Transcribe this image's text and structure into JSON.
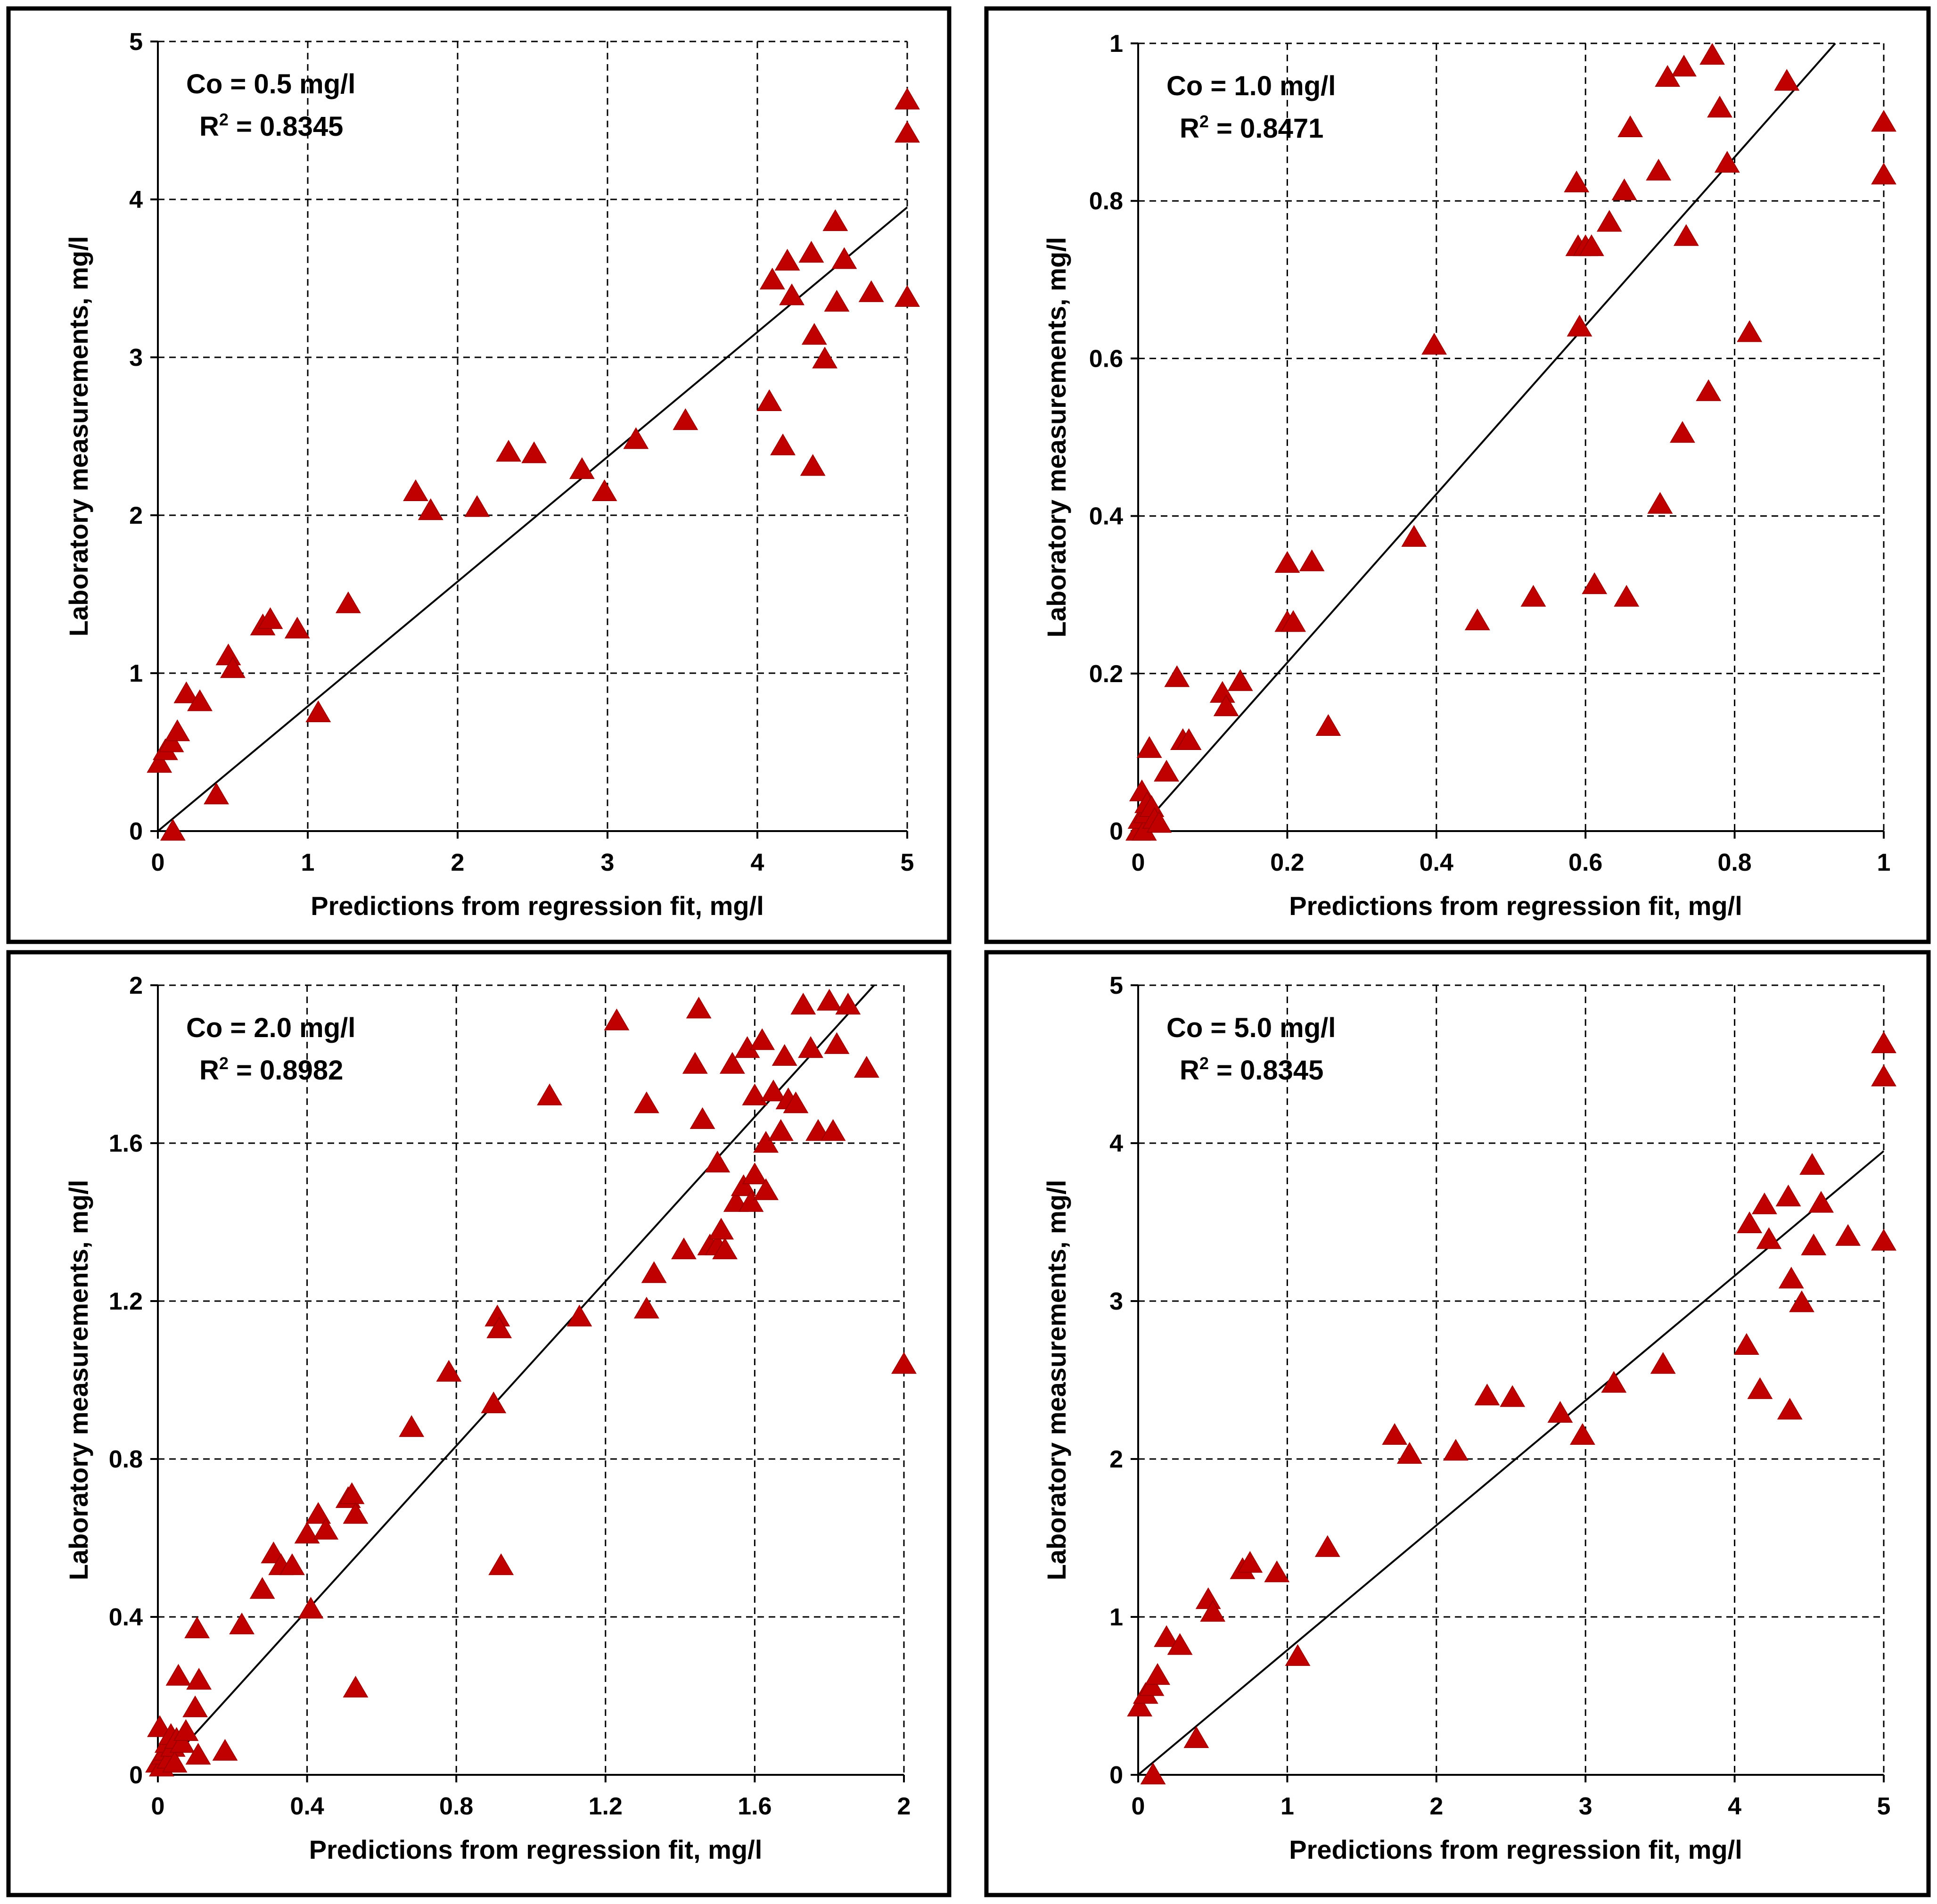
{
  "colors": {
    "marker": "#C00000",
    "marker_stroke": "#A00000",
    "line": "#000000",
    "grid": "#000000",
    "panel_border": "#000000",
    "background": "#ffffff"
  },
  "chart_data": [
    {
      "type": "scatter",
      "panel": "top-left",
      "xlabel": "Predictions from regression fit, mg/l",
      "ylabel": "Laboratory measurements, mg/l",
      "xlim": [
        0,
        5
      ],
      "ylim": [
        0,
        5
      ],
      "xticks": [
        0,
        1,
        2,
        3,
        4,
        5
      ],
      "yticks": [
        0,
        1,
        2,
        3,
        4,
        5
      ],
      "xtick_labels": [
        "0",
        "1",
        "2",
        "3",
        "4",
        "5"
      ],
      "ytick_labels": [
        "0",
        "1",
        "2",
        "3",
        "4",
        "5"
      ],
      "grid": true,
      "annotation": {
        "co_text": "Co = 0.5 mg/l",
        "r2_prefix": "R",
        "r2_sup": "2",
        "r2_suffix": " = 0.8345"
      },
      "fit_line": {
        "x": [
          0,
          5
        ],
        "y": [
          0,
          3.95
        ]
      },
      "points": {
        "x": [
          0.01,
          0.05,
          0.09,
          0.13,
          0.19,
          0.28,
          0.1,
          0.39,
          0.47,
          0.5,
          0.7,
          0.75,
          0.93,
          1.07,
          1.27,
          1.72,
          1.82,
          2.13,
          2.34,
          2.51,
          2.83,
          2.98,
          3.19,
          3.52,
          4.08,
          4.1,
          4.17,
          4.2,
          4.23,
          4.36,
          4.37,
          4.38,
          4.45,
          4.52,
          4.53,
          4.58,
          4.76,
          5.0,
          5.0,
          5.0
        ],
        "y": [
          0.43,
          0.51,
          0.56,
          0.63,
          0.87,
          0.82,
          0.0,
          0.23,
          1.11,
          1.03,
          1.3,
          1.34,
          1.28,
          0.75,
          1.44,
          2.15,
          2.03,
          2.05,
          2.4,
          2.39,
          2.29,
          2.15,
          2.48,
          2.6,
          2.72,
          3.49,
          2.44,
          3.61,
          3.39,
          3.66,
          2.31,
          3.14,
          2.99,
          3.86,
          3.35,
          3.62,
          3.41,
          4.63,
          4.42,
          3.38
        ]
      }
    },
    {
      "type": "scatter",
      "panel": "top-right",
      "xlabel": "Predictions from regression fit, mg/l",
      "ylabel": "Laboratory measurements, mg/l",
      "xlim": [
        0,
        1
      ],
      "ylim": [
        0,
        1
      ],
      "xticks": [
        0,
        0.2,
        0.4,
        0.6,
        0.8,
        1.0
      ],
      "yticks": [
        0,
        0.2,
        0.4,
        0.6,
        0.8,
        1.0
      ],
      "xtick_labels": [
        "0",
        "0.2",
        "0.4",
        "0.6",
        "0.8",
        "1"
      ],
      "ytick_labels": [
        "0",
        "0.2",
        "0.4",
        "0.6",
        "0.8",
        "1"
      ],
      "grid": true,
      "annotation": {
        "co_text": "Co = 1.0 mg/l",
        "r2_prefix": "R",
        "r2_sup": "2",
        "r2_suffix": " = 0.8471"
      },
      "fit_line": {
        "x": [
          0,
          0.935
        ],
        "y": [
          0,
          1.0
        ]
      },
      "points": {
        "x": [
          0.0,
          0.003,
          0.005,
          0.008,
          0.01,
          0.012,
          0.015,
          0.018,
          0.022,
          0.028,
          0.038,
          0.052,
          0.06,
          0.068,
          0.113,
          0.118,
          0.137,
          0.2,
          0.2,
          0.208,
          0.233,
          0.255,
          0.37,
          0.397,
          0.455,
          0.53,
          0.588,
          0.59,
          0.592,
          0.6,
          0.608,
          0.612,
          0.632,
          0.652,
          0.655,
          0.66,
          0.698,
          0.7,
          0.71,
          0.73,
          0.732,
          0.735,
          0.765,
          0.77,
          0.78,
          0.79,
          0.82,
          0.87,
          1.0,
          1.0
        ],
        "y": [
          0.0,
          0.015,
          0.05,
          0.0,
          0.022,
          0.035,
          0.105,
          0.03,
          0.015,
          0.01,
          0.075,
          0.195,
          0.115,
          0.115,
          0.175,
          0.158,
          0.19,
          0.34,
          0.265,
          0.265,
          0.342,
          0.133,
          0.373,
          0.617,
          0.267,
          0.297,
          0.823,
          0.742,
          0.64,
          0.742,
          0.742,
          0.313,
          0.773,
          0.813,
          0.297,
          0.893,
          0.838,
          0.415,
          0.957,
          0.505,
          0.97,
          0.755,
          0.558,
          0.985,
          0.918,
          0.848,
          0.633,
          0.952,
          0.9,
          0.833
        ]
      }
    },
    {
      "type": "scatter",
      "panel": "bottom-left",
      "xlabel": "Predictions from regression fit, mg/l",
      "ylabel": "Laboratory measurements, mg/l",
      "xlim": [
        0,
        2
      ],
      "ylim": [
        0,
        2
      ],
      "xticks": [
        0,
        0.4,
        0.8,
        1.2,
        1.6,
        2.0
      ],
      "yticks": [
        0,
        0.4,
        0.8,
        1.2,
        1.6,
        2.0
      ],
      "xtick_labels": [
        "0",
        "0.4",
        "0.8",
        "1.2",
        "1.6",
        "2"
      ],
      "ytick_labels": [
        "0",
        "0.4",
        "0.8",
        "1.2",
        "1.6",
        "2"
      ],
      "grid": true,
      "annotation": {
        "co_text": "Co = 2.0 mg/l",
        "r2_prefix": "R",
        "r2_sup": "2",
        "r2_suffix": " = 0.8982"
      },
      "fit_line": {
        "x": [
          0,
          1.92
        ],
        "y": [
          0,
          2.0
        ]
      },
      "points": {
        "x": [
          0.0,
          0.005,
          0.01,
          0.015,
          0.02,
          0.025,
          0.03,
          0.035,
          0.04,
          0.045,
          0.05,
          0.055,
          0.065,
          0.075,
          0.1,
          0.105,
          0.108,
          0.11,
          0.18,
          0.225,
          0.28,
          0.31,
          0.33,
          0.36,
          0.4,
          0.41,
          0.43,
          0.45,
          0.51,
          0.52,
          0.53,
          0.53,
          0.68,
          0.78,
          0.9,
          0.91,
          0.915,
          0.92,
          1.05,
          1.13,
          1.23,
          1.31,
          1.31,
          1.33,
          1.41,
          1.44,
          1.45,
          1.46,
          1.48,
          1.5,
          1.5,
          1.51,
          1.52,
          1.54,
          1.55,
          1.57,
          1.58,
          1.59,
          1.6,
          1.6,
          1.62,
          1.63,
          1.63,
          1.65,
          1.67,
          1.68,
          1.69,
          1.71,
          1.73,
          1.75,
          1.77,
          1.8,
          1.81,
          1.82,
          1.85,
          1.9,
          2.0
        ],
        "y": [
          0.03,
          0.12,
          0.02,
          0.05,
          0.06,
          0.08,
          0.04,
          0.1,
          0.07,
          0.03,
          0.09,
          0.25,
          0.08,
          0.11,
          0.17,
          0.37,
          0.05,
          0.24,
          0.06,
          0.38,
          0.47,
          0.56,
          0.53,
          0.53,
          0.61,
          0.42,
          0.66,
          0.62,
          0.7,
          0.71,
          0.22,
          0.66,
          0.88,
          1.02,
          0.94,
          1.16,
          1.13,
          0.53,
          1.72,
          1.16,
          1.91,
          1.18,
          1.7,
          1.27,
          1.33,
          1.8,
          1.94,
          1.66,
          1.34,
          1.34,
          1.55,
          1.38,
          1.33,
          1.8,
          1.45,
          1.49,
          1.84,
          1.45,
          1.72,
          1.52,
          1.86,
          1.6,
          1.48,
          1.73,
          1.63,
          1.82,
          1.71,
          1.7,
          1.95,
          1.84,
          1.63,
          1.96,
          1.63,
          1.85,
          1.95,
          1.79,
          1.04
        ]
      }
    },
    {
      "type": "scatter",
      "panel": "bottom-right",
      "xlabel": "Predictions from regression fit, mg/l",
      "ylabel": "Laboratory measurements, mg/l",
      "xlim": [
        0,
        5
      ],
      "ylim": [
        0,
        5
      ],
      "xticks": [
        0,
        1,
        2,
        3,
        4,
        5
      ],
      "yticks": [
        0,
        1,
        2,
        3,
        4,
        5
      ],
      "xtick_labels": [
        "0",
        "1",
        "2",
        "3",
        "4",
        "5"
      ],
      "ytick_labels": [
        "0",
        "1",
        "2",
        "3",
        "4",
        "5"
      ],
      "grid": true,
      "annotation": {
        "co_text": "Co = 5.0 mg/l",
        "r2_prefix": "R",
        "r2_sup": "2",
        "r2_suffix": " = 0.8345"
      },
      "fit_line": {
        "x": [
          0,
          5
        ],
        "y": [
          0,
          3.95
        ]
      },
      "points": {
        "x": [
          0.01,
          0.05,
          0.09,
          0.13,
          0.19,
          0.28,
          0.1,
          0.39,
          0.47,
          0.5,
          0.7,
          0.75,
          0.93,
          1.07,
          1.27,
          1.72,
          1.82,
          2.13,
          2.34,
          2.51,
          2.83,
          2.98,
          3.19,
          3.52,
          4.08,
          4.1,
          4.17,
          4.2,
          4.23,
          4.36,
          4.37,
          4.38,
          4.45,
          4.52,
          4.53,
          4.58,
          4.76,
          5.0,
          5.0,
          5.0
        ],
        "y": [
          0.43,
          0.51,
          0.56,
          0.63,
          0.87,
          0.82,
          0.0,
          0.23,
          1.11,
          1.03,
          1.3,
          1.34,
          1.28,
          0.75,
          1.44,
          2.15,
          2.03,
          2.05,
          2.4,
          2.39,
          2.29,
          2.15,
          2.48,
          2.6,
          2.72,
          3.49,
          2.44,
          3.61,
          3.39,
          3.66,
          2.31,
          3.14,
          2.99,
          3.86,
          3.35,
          3.62,
          3.41,
          4.63,
          4.42,
          3.38
        ]
      }
    }
  ]
}
